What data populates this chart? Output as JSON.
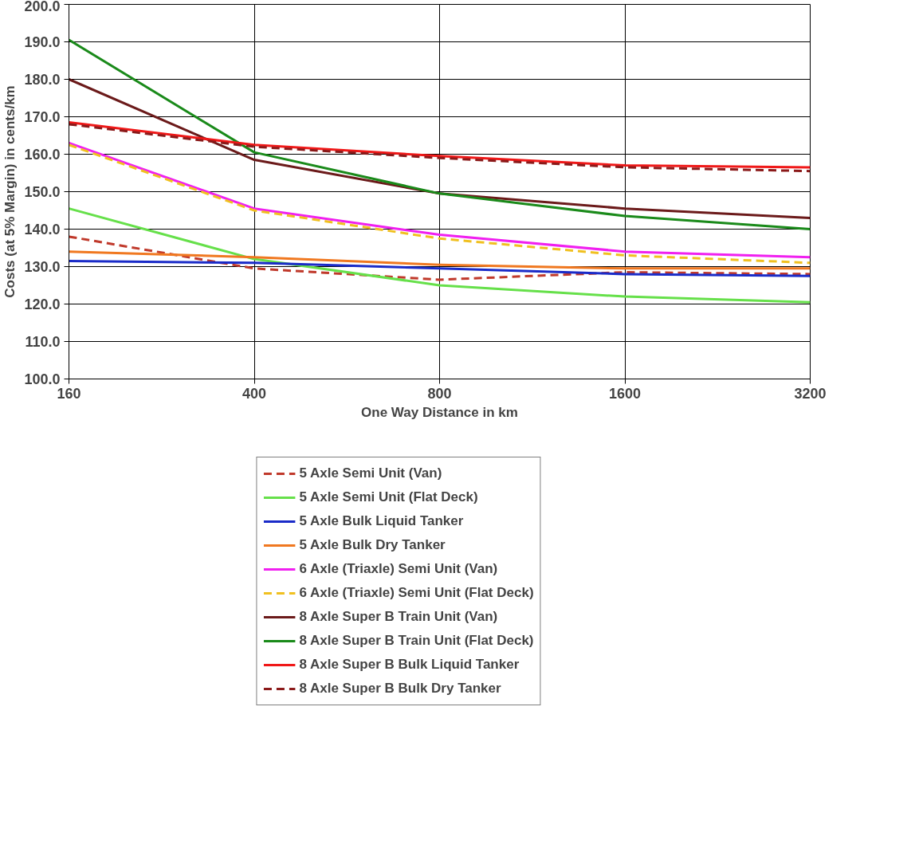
{
  "chart_data": {
    "type": "line",
    "xlabel": "One Way Distance in km",
    "ylabel": "Costs (at 5% Margin) in cents/km",
    "categories": [
      "160",
      "400",
      "800",
      "1600",
      "3200"
    ],
    "ylim": [
      100,
      200
    ],
    "yticks": [
      {
        "value": 100,
        "label": "100.0"
      },
      {
        "value": 110,
        "label": "110.0"
      },
      {
        "value": 120,
        "label": "120.0"
      },
      {
        "value": 130,
        "label": "130.0"
      },
      {
        "value": 140,
        "label": "140.0"
      },
      {
        "value": 150,
        "label": "150.0"
      },
      {
        "value": 160,
        "label": "160.0"
      },
      {
        "value": 170,
        "label": "170.0"
      },
      {
        "value": 180,
        "label": "180.0"
      },
      {
        "value": 190,
        "label": "190.0"
      },
      {
        "value": 200,
        "label": "200.0"
      }
    ],
    "grid": true,
    "legend": "bottom",
    "marker": "none",
    "series": [
      {
        "name": "5 Axle Semi Unit (Van)",
        "color": "#c0392b",
        "line_style": "dashed",
        "values": [
          138,
          129.5,
          126.5,
          128.5,
          128
        ]
      },
      {
        "name": "5 Axle Semi Unit (Flat Deck)",
        "color": "#66e04a",
        "values": [
          145.5,
          132,
          125,
          122,
          120.5
        ]
      },
      {
        "name": "5 Axle Bulk Liquid Tanker",
        "color": "#1a2bc8",
        "values": [
          131.5,
          131,
          129.5,
          128,
          127.5
        ]
      },
      {
        "name": "5 Axle Bulk Dry Tanker",
        "color": "#f07820",
        "values": [
          134,
          132.5,
          130.5,
          129.5,
          129.5
        ]
      },
      {
        "name": "6 Axle (Triaxle) Semi Unit (Van)",
        "color": "#f020f0",
        "values": [
          163,
          145.5,
          138.5,
          134,
          132.5
        ]
      },
      {
        "name": "6 Axle (Triaxle) Semi Unit (Flat Deck)",
        "color": "#f0c020",
        "line_style": "dashed",
        "values": [
          162.5,
          145,
          137.5,
          133,
          131
        ]
      },
      {
        "name": "8 Axle Super B Train Unit (Van)",
        "color": "#6b1a1a",
        "values": [
          180,
          158.5,
          149.5,
          145.5,
          143
        ]
      },
      {
        "name": "8 Axle Super B Train Unit (Flat Deck)",
        "color": "#1a8a1a",
        "values": [
          190.5,
          160.5,
          149.5,
          143.5,
          140
        ]
      },
      {
        "name": "8 Axle Super B Bulk Liquid Tanker",
        "color": "#f01818",
        "values": [
          168.5,
          162.5,
          159.5,
          157,
          156.5
        ]
      },
      {
        "name": "8 Axle Super B Bulk Dry Tanker",
        "color": "#8b1a1a",
        "line_style": "dashed",
        "values": [
          168,
          162,
          159,
          156.5,
          155.5
        ]
      }
    ]
  }
}
